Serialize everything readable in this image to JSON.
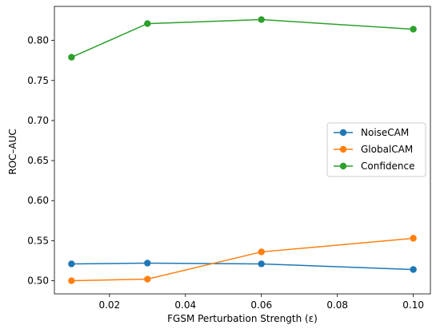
{
  "chart_data": {
    "type": "line",
    "title": "",
    "xlabel": "FGSM Perturbation Strength (ε)",
    "ylabel": "ROC–AUC",
    "x": [
      0.01,
      0.03,
      0.06,
      0.1
    ],
    "xlim": [
      0.0055,
      0.1045
    ],
    "ylim": [
      0.4836,
      0.8425
    ],
    "x_ticks": [
      0.02,
      0.04,
      0.06,
      0.08,
      0.1
    ],
    "x_tick_labels": [
      "0.02",
      "0.04",
      "0.06",
      "0.08",
      "0.10"
    ],
    "y_ticks": [
      0.5,
      0.55,
      0.6,
      0.65,
      0.7,
      0.75,
      0.8
    ],
    "y_tick_labels": [
      "0.50",
      "0.55",
      "0.60",
      "0.65",
      "0.70",
      "0.75",
      "0.80"
    ],
    "grid": false,
    "legend_position": "right",
    "series": [
      {
        "name": "NoiseCAM",
        "color": "#1f77b4",
        "values": [
          0.521,
          0.522,
          0.521,
          0.514
        ]
      },
      {
        "name": "GlobalCAM",
        "color": "#ff7f0e",
        "values": [
          0.5,
          0.502,
          0.536,
          0.553
        ]
      },
      {
        "name": "Confidence",
        "color": "#2ca02c",
        "values": [
          0.779,
          0.821,
          0.826,
          0.814
        ]
      }
    ]
  }
}
